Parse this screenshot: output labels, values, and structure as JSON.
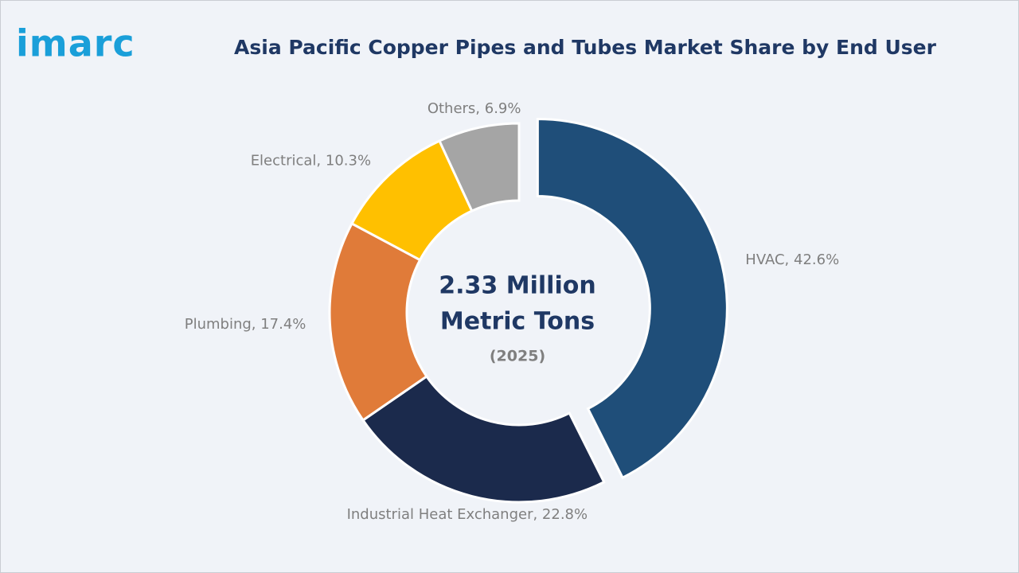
{
  "logo": "imarc",
  "chart_data": {
    "type": "pie",
    "title": "Asia Pacific Copper Pipes and Tubes Market Share by End User",
    "categories": [
      "HVAC",
      "Industrial Heat Exchanger",
      "Plumbing",
      "Electrical",
      "Others"
    ],
    "values": [
      42.6,
      22.8,
      17.4,
      10.3,
      6.9
    ],
    "value_labels": [
      "HVAC, 42.6%",
      "Industrial Heat Exchanger, 22.8%",
      "Plumbing, 17.4%",
      "Electrical, 10.3%",
      "Others, 6.9%"
    ],
    "colors": [
      "#1f4e79",
      "#1b2a4c",
      "#e07b39",
      "#ffc000",
      "#a5a5a5"
    ],
    "explode": [
      true,
      false,
      false,
      false,
      false
    ],
    "donut": true,
    "center_lines": [
      "2.33 Million",
      "Metric Tons"
    ],
    "center_subtitle": "(2025)"
  }
}
